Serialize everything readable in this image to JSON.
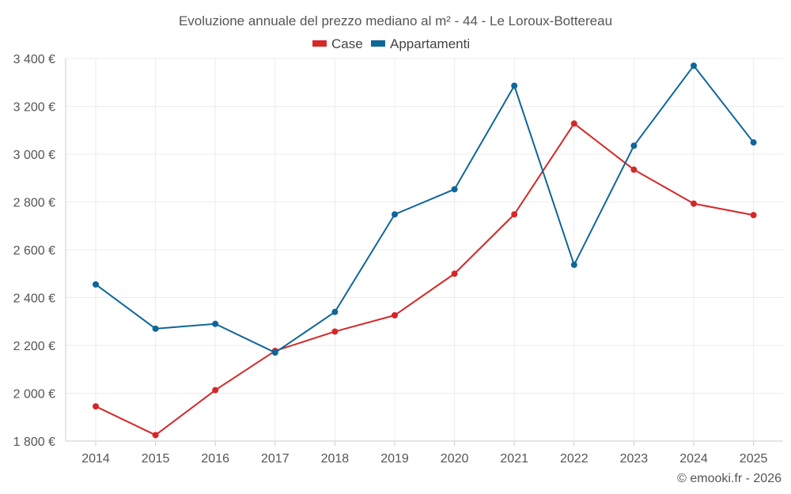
{
  "chart_data": {
    "type": "line",
    "title": "Evoluzione annuale del prezzo mediano al m² - 44 - Le Loroux-Bottereau",
    "categories": [
      "2014",
      "2015",
      "2016",
      "2017",
      "2018",
      "2019",
      "2020",
      "2021",
      "2022",
      "2023",
      "2024",
      "2025"
    ],
    "series": [
      {
        "name": "Case",
        "color": "#d62728",
        "values": [
          1945,
          1825,
          2013,
          2177,
          2258,
          2326,
          2500,
          2748,
          3128,
          2935,
          2793,
          2745
        ]
      },
      {
        "name": "Appartamenti",
        "color": "#0f6699",
        "values": [
          2455,
          2270,
          2290,
          2170,
          2340,
          2748,
          2853,
          3286,
          2537,
          3035,
          3370,
          3049
        ]
      }
    ],
    "ylim": [
      1800,
      3400
    ],
    "yticks": [
      1800,
      2000,
      2200,
      2400,
      2600,
      2800,
      3000,
      3200,
      3400
    ],
    "ytick_labels": [
      "1 800 €",
      "2 000 €",
      "2 200 €",
      "2 400 €",
      "2 600 €",
      "2 800 €",
      "3 000 €",
      "3 200 €",
      "3 400 €"
    ],
    "xlabel": "",
    "ylabel": "",
    "grid": true,
    "legend": "top-center"
  },
  "credit": "© emooki.fr - 2026"
}
